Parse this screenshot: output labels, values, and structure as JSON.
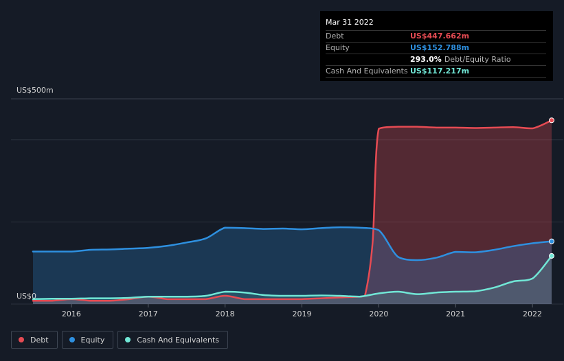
{
  "tooltip": {
    "date": "Mar 31 2022",
    "debt_label": "Debt",
    "debt_value": "US$447.662m",
    "equity_label": "Equity",
    "equity_value": "US$152.788m",
    "ratio_value": "293.0%",
    "ratio_label": "Debt/Equity Ratio",
    "cash_label": "Cash And Equivalents",
    "cash_value": "US$117.217m"
  },
  "colors": {
    "debt": "#e64b53",
    "equity": "#2e90e0",
    "cash": "#71e7d6",
    "background": "#151b26"
  },
  "legend": {
    "debt": "Debt",
    "equity": "Equity",
    "cash": "Cash And Equivalents"
  },
  "chart_data": {
    "type": "area",
    "title": "",
    "xlabel": "",
    "ylabel": "",
    "unit": "US$ millions",
    "ylim": [
      0,
      500
    ],
    "xlim": [
      2015.5,
      2022.25
    ],
    "y_tick_labels": {
      "top": "US$500m",
      "bottom": "US$0"
    },
    "x_ticks": [
      2016,
      2017,
      2018,
      2019,
      2020,
      2021,
      2022
    ],
    "x_tick_labels": [
      "2016",
      "2017",
      "2018",
      "2019",
      "2020",
      "2021",
      "2022"
    ],
    "grid": true,
    "legend_position": "bottom-left",
    "series": [
      {
        "name": "Debt",
        "x": [
          2015.5,
          2015.75,
          2016.0,
          2016.25,
          2016.5,
          2016.75,
          2017.0,
          2017.25,
          2017.5,
          2017.75,
          2018.0,
          2018.25,
          2018.5,
          2018.75,
          2019.0,
          2019.25,
          2019.5,
          2019.75,
          2019.82,
          2019.92,
          2020.0,
          2020.25,
          2020.5,
          2020.75,
          2021.0,
          2021.25,
          2021.5,
          2021.75,
          2022.0,
          2022.25
        ],
        "values": [
          8,
          8,
          12,
          8,
          8,
          12,
          18,
          12,
          12,
          12,
          20,
          12,
          12,
          12,
          12,
          14,
          16,
          18,
          20,
          150,
          427,
          432,
          432,
          430,
          430,
          429,
          430,
          431,
          428,
          447.662
        ]
      },
      {
        "name": "Equity",
        "x": [
          2015.5,
          2015.75,
          2016.0,
          2016.25,
          2016.5,
          2016.75,
          2017.0,
          2017.25,
          2017.5,
          2017.75,
          2018.0,
          2018.25,
          2018.5,
          2018.75,
          2019.0,
          2019.25,
          2019.5,
          2019.75,
          2020.0,
          2020.25,
          2020.5,
          2020.75,
          2021.0,
          2021.25,
          2021.5,
          2021.75,
          2022.0,
          2022.25
        ],
        "values": [
          128,
          128,
          128,
          132,
          133,
          135,
          137,
          142,
          150,
          160,
          186,
          185,
          183,
          184,
          182,
          185,
          187,
          186,
          180,
          115,
          107,
          113,
          127,
          126,
          132,
          141,
          148,
          152.788
        ]
      },
      {
        "name": "Cash And Equivalents",
        "x": [
          2015.5,
          2015.75,
          2016.0,
          2016.25,
          2016.5,
          2016.75,
          2017.0,
          2017.25,
          2017.5,
          2017.75,
          2018.0,
          2018.25,
          2018.5,
          2018.75,
          2019.0,
          2019.25,
          2019.5,
          2019.75,
          2020.0,
          2020.25,
          2020.5,
          2020.75,
          2021.0,
          2021.25,
          2021.5,
          2021.75,
          2022.0,
          2022.25
        ],
        "values": [
          12,
          13,
          13,
          14,
          14,
          15,
          18,
          18,
          18,
          20,
          30,
          28,
          22,
          20,
          20,
          21,
          20,
          18,
          26,
          30,
          24,
          28,
          30,
          31,
          40,
          55,
          62,
          117.217
        ]
      }
    ]
  }
}
